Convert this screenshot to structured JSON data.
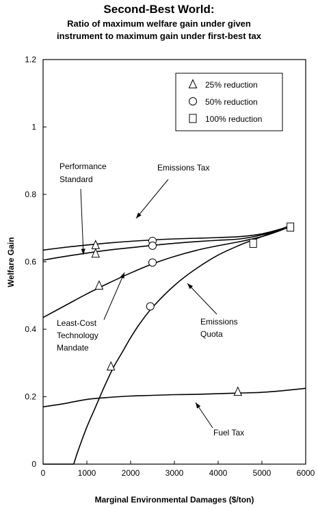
{
  "chart_data": {
    "type": "line",
    "title": "Second-Best World:",
    "subtitle_lines": [
      "Ratio of maximum welfare gain under given",
      "instrument to maximum gain under first-best tax"
    ],
    "xlabel": "Marginal Environmental Damages ($/ton)",
    "ylabel": "Welfare Gain",
    "xlim": [
      0,
      6000
    ],
    "ylim": [
      0,
      1.2
    ],
    "x_ticks": [
      0,
      1000,
      2000,
      3000,
      4000,
      5000,
      6000
    ],
    "y_ticks": [
      0,
      0.2,
      0.4,
      0.6,
      0.8,
      1,
      1.2
    ],
    "y_tick_labels": [
      "0",
      "0.2",
      "0.4",
      "0.6",
      "0.8",
      "1",
      "1.2"
    ],
    "grid": false,
    "legend_position": "top-right",
    "legend": [
      {
        "marker": "triangle",
        "label": "25% reduction"
      },
      {
        "marker": "circle",
        "label": "50% reduction"
      },
      {
        "marker": "square",
        "label": "100% reduction"
      }
    ],
    "series": [
      {
        "name": "Emissions Tax",
        "x": [
          0,
          500,
          1000,
          1500,
          2000,
          2500,
          3000,
          3500,
          4000,
          4500,
          5000,
          5500,
          5700
        ],
        "y": [
          0.635,
          0.643,
          0.65,
          0.656,
          0.661,
          0.665,
          0.668,
          0.67,
          0.672,
          0.675,
          0.683,
          0.7,
          0.71
        ]
      },
      {
        "name": "Performance Standard",
        "x": [
          0,
          500,
          1000,
          1500,
          2000,
          2500,
          3000,
          3500,
          4000,
          4500,
          5000,
          5500,
          5700
        ],
        "y": [
          0.605,
          0.616,
          0.626,
          0.635,
          0.642,
          0.649,
          0.655,
          0.66,
          0.664,
          0.668,
          0.68,
          0.7,
          0.71
        ]
      },
      {
        "name": "Least-Cost Technology Mandate",
        "x": [
          0,
          500,
          1000,
          1500,
          2000,
          2500,
          3000,
          3500,
          4000,
          4500,
          5000,
          5500,
          5700
        ],
        "y": [
          0.435,
          0.47,
          0.505,
          0.537,
          0.567,
          0.594,
          0.616,
          0.634,
          0.648,
          0.66,
          0.675,
          0.697,
          0.71
        ]
      },
      {
        "name": "Emissions Quota",
        "x": [
          0,
          700,
          800,
          1000,
          1200,
          1400,
          1600,
          1800,
          2000,
          2200,
          2500,
          3000,
          3500,
          4000,
          4500,
          4800,
          5000,
          5400,
          5700
        ],
        "y": [
          0,
          0,
          0.04,
          0.11,
          0.17,
          0.23,
          0.285,
          0.33,
          0.375,
          0.415,
          0.465,
          0.53,
          0.58,
          0.62,
          0.65,
          0.665,
          0.675,
          0.695,
          0.71
        ]
      },
      {
        "name": "Fuel Tax",
        "x": [
          0,
          500,
          1000,
          1500,
          2000,
          2500,
          3000,
          3500,
          4000,
          4500,
          5000,
          5500,
          6000
        ],
        "y": [
          0.17,
          0.18,
          0.192,
          0.198,
          0.202,
          0.204,
          0.206,
          0.207,
          0.209,
          0.211,
          0.213,
          0.218,
          0.225
        ]
      }
    ],
    "markers": [
      {
        "shape": "triangle",
        "x": 1200,
        "y": 0.65
      },
      {
        "shape": "triangle",
        "x": 1200,
        "y": 0.625
      },
      {
        "shape": "triangle",
        "x": 1280,
        "y": 0.53
      },
      {
        "shape": "triangle",
        "x": 1550,
        "y": 0.29
      },
      {
        "shape": "triangle",
        "x": 4450,
        "y": 0.215
      },
      {
        "shape": "circle",
        "x": 2500,
        "y": 0.662
      },
      {
        "shape": "circle",
        "x": 2500,
        "y": 0.648
      },
      {
        "shape": "circle",
        "x": 2500,
        "y": 0.598
      },
      {
        "shape": "circle",
        "x": 2450,
        "y": 0.468
      },
      {
        "shape": "square",
        "x": 4800,
        "y": 0.655
      },
      {
        "shape": "square",
        "x": 5650,
        "y": 0.703
      }
    ],
    "annotations": [
      {
        "id": "ann-performance-standard",
        "lines": [
          "Performance",
          "Standard"
        ]
      },
      {
        "id": "ann-emissions-tax",
        "lines": [
          "Emissions Tax"
        ]
      },
      {
        "id": "ann-least-cost",
        "lines": [
          "Least-Cost",
          "Technology",
          "Mandate"
        ]
      },
      {
        "id": "ann-emissions-quota",
        "lines": [
          "Emissions",
          "Quota"
        ]
      },
      {
        "id": "ann-fuel-tax",
        "lines": [
          "Fuel Tax"
        ]
      }
    ]
  }
}
